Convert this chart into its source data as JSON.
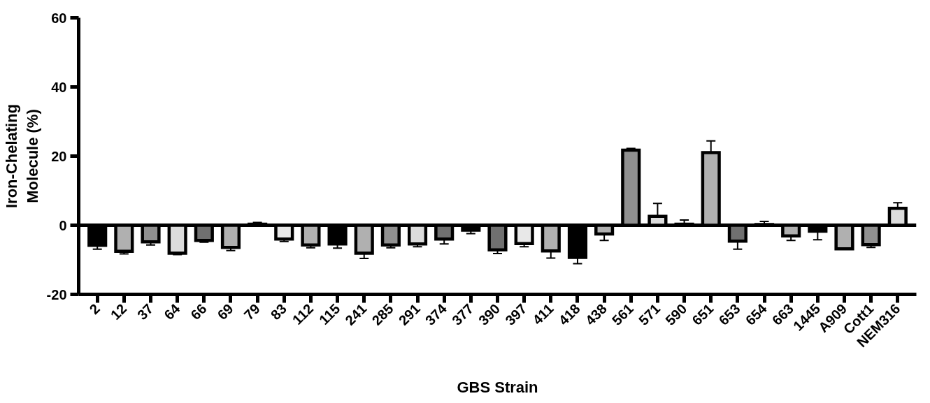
{
  "chart_data": {
    "type": "bar",
    "xlabel": "GBS Strain",
    "ylabel": "Iron-Chelating Molecule (%)",
    "categories": [
      "2",
      "12",
      "37",
      "64",
      "66",
      "69",
      "79",
      "83",
      "112",
      "115",
      "241",
      "285",
      "291",
      "374",
      "377",
      "390",
      "397",
      "411",
      "418",
      "438",
      "561",
      "571",
      "590",
      "651",
      "653",
      "654",
      "663",
      "1445",
      "A909",
      "Cott1",
      "NEM316"
    ],
    "values": [
      -5.8,
      -7.5,
      -4.8,
      -8.1,
      -4.4,
      -6.4,
      0.3,
      -4.0,
      -5.7,
      -5.4,
      -8.1,
      -5.7,
      -5.4,
      -4.0,
      -1.4,
      -7.1,
      -5.3,
      -7.4,
      -9.3,
      -2.5,
      21.7,
      2.6,
      0.3,
      21.0,
      -4.6,
      0.2,
      -3.1,
      -1.7,
      -6.8,
      -5.6,
      4.9
    ],
    "errors": [
      1.1,
      0.8,
      0.9,
      0.4,
      0.5,
      0.9,
      0.5,
      0.7,
      0.8,
      1.2,
      1.5,
      0.8,
      0.8,
      1.4,
      1.0,
      1.1,
      0.9,
      2.1,
      1.8,
      1.9,
      0.5,
      3.7,
      1.2,
      3.4,
      2.3,
      0.9,
      1.3,
      2.5,
      0.1,
      0.8,
      1.6
    ],
    "colors": [
      "#000000",
      "#b0b0b0",
      "#909090",
      "#dcdcdc",
      "#707070",
      "#b0b0b0",
      "#000000",
      "#e8e8e8",
      "#b0b0b0",
      "#000000",
      "#b0b0b0",
      "#909090",
      "#dcdcdc",
      "#707070",
      "#000000",
      "#707070",
      "#e8e8e8",
      "#b0b0b0",
      "#000000",
      "#b0b0b0",
      "#909090",
      "#dcdcdc",
      "#000000",
      "#b0b0b0",
      "#707070",
      "#000000",
      "#b0b0b0",
      "#000000",
      "#b0b0b0",
      "#909090",
      "#dcdcdc"
    ],
    "ylim": [
      -20,
      60
    ],
    "yticks": [
      -20,
      0,
      20,
      40,
      60
    ],
    "ref_lines": [
      {
        "axis": "y",
        "value": 0
      }
    ],
    "grid": false
  }
}
